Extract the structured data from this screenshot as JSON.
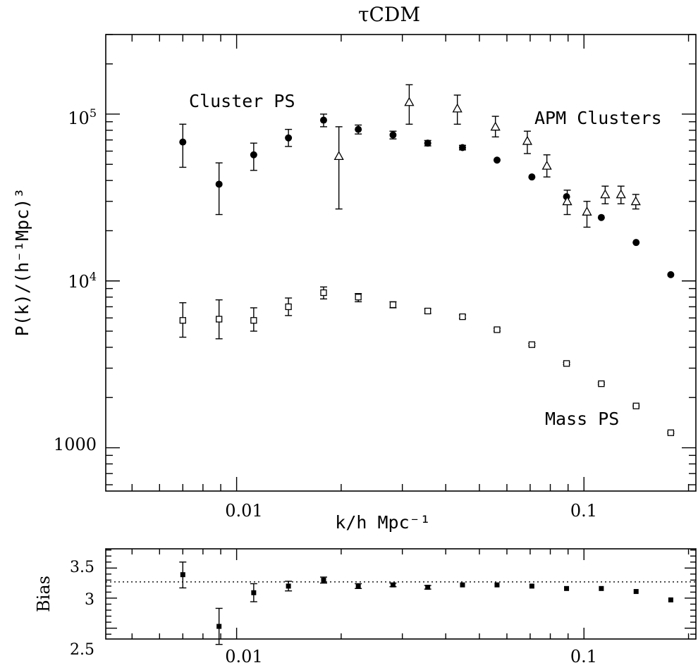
{
  "chart_data": [
    {
      "type": "scatter",
      "title": "τCDM",
      "xlabel": "k/h Mpc⁻¹",
      "ylabel": "P(k)/(h⁻¹Mpc)³",
      "xscale": "log",
      "yscale": "log",
      "xlim": [
        0.0042,
        0.21
      ],
      "ylim": [
        550,
        300000
      ],
      "xticklabels": [
        "0.01",
        "0.1"
      ],
      "yticklabels": [
        {
          "value": 1000,
          "base": "1000",
          "exp": ""
        },
        {
          "value": 10000,
          "base": "10",
          "exp": "4"
        },
        {
          "value": 100000,
          "base": "10",
          "exp": "5"
        }
      ],
      "annotations": [
        "Cluster PS",
        "APM Clusters",
        "Mass PS"
      ],
      "series": [
        {
          "marker": "filled-circle",
          "points": [
            {
              "x": 0.007,
              "y": 68000,
              "lo": 48000,
              "hi": 87000
            },
            {
              "x": 0.0089,
              "y": 38000,
              "lo": 25000,
              "hi": 51000
            },
            {
              "x": 0.0112,
              "y": 57000,
              "lo": 46000,
              "hi": 67000
            },
            {
              "x": 0.0141,
              "y": 72000,
              "lo": 64000,
              "hi": 81000
            },
            {
              "x": 0.0178,
              "y": 92000,
              "lo": 84000,
              "hi": 100000
            },
            {
              "x": 0.0224,
              "y": 81000,
              "lo": 76000,
              "hi": 86000
            },
            {
              "x": 0.0282,
              "y": 75000,
              "lo": 71000,
              "hi": 79000
            },
            {
              "x": 0.0355,
              "y": 67000,
              "lo": 64500,
              "hi": 69500
            },
            {
              "x": 0.0447,
              "y": 63000,
              "lo": 61000,
              "hi": 65000
            },
            {
              "x": 0.0562,
              "y": 53000
            },
            {
              "x": 0.0708,
              "y": 42000
            },
            {
              "x": 0.0891,
              "y": 32000
            },
            {
              "x": 0.1122,
              "y": 24000
            },
            {
              "x": 0.1413,
              "y": 17000
            },
            {
              "x": 0.1778,
              "y": 10900
            }
          ]
        },
        {
          "marker": "open-triangle",
          "points": [
            {
              "x": 0.0197,
              "y": 56000,
              "lo": 27000,
              "hi": 84000
            },
            {
              "x": 0.0314,
              "y": 118000,
              "lo": 87000,
              "hi": 150000
            },
            {
              "x": 0.0432,
              "y": 108000,
              "lo": 87000,
              "hi": 130000
            },
            {
              "x": 0.0556,
              "y": 84000,
              "lo": 73000,
              "hi": 97000
            },
            {
              "x": 0.0687,
              "y": 69000,
              "lo": 58000,
              "hi": 79000
            },
            {
              "x": 0.0782,
              "y": 49000,
              "lo": 42000,
              "hi": 57000
            },
            {
              "x": 0.0895,
              "y": 30000,
              "lo": 25000,
              "hi": 35000
            },
            {
              "x": 0.102,
              "y": 26000,
              "lo": 21000,
              "hi": 30000
            },
            {
              "x": 0.1151,
              "y": 33000,
              "lo": 29000,
              "hi": 37000
            },
            {
              "x": 0.1278,
              "y": 33000,
              "lo": 29000,
              "hi": 37000
            },
            {
              "x": 0.141,
              "y": 30000,
              "lo": 27000,
              "hi": 33000
            }
          ]
        },
        {
          "marker": "open-square",
          "points": [
            {
              "x": 0.007,
              "y": 5800,
              "lo": 4600,
              "hi": 7400
            },
            {
              "x": 0.0089,
              "y": 5900,
              "lo": 4500,
              "hi": 7700
            },
            {
              "x": 0.0112,
              "y": 5800,
              "lo": 5000,
              "hi": 6900
            },
            {
              "x": 0.0141,
              "y": 7000,
              "lo": 6200,
              "hi": 7900
            },
            {
              "x": 0.0178,
              "y": 8500,
              "lo": 7800,
              "hi": 9200
            },
            {
              "x": 0.0224,
              "y": 8000,
              "lo": 7500,
              "hi": 8400
            },
            {
              "x": 0.0282,
              "y": 7200,
              "lo": 6900,
              "hi": 7500
            },
            {
              "x": 0.0355,
              "y": 6600,
              "lo": 6400,
              "hi": 6800
            },
            {
              "x": 0.0447,
              "y": 6100,
              "lo": 5950,
              "hi": 6250
            },
            {
              "x": 0.0562,
              "y": 5100,
              "lo": 5000,
              "hi": 5200
            },
            {
              "x": 0.0708,
              "y": 4150,
              "lo": 4080,
              "hi": 4220
            },
            {
              "x": 0.0891,
              "y": 3200,
              "lo": 3150,
              "hi": 3250
            },
            {
              "x": 0.1122,
              "y": 2420,
              "lo": 2390,
              "hi": 2450
            },
            {
              "x": 0.1413,
              "y": 1780,
              "lo": 1760,
              "hi": 1800
            },
            {
              "x": 0.1778,
              "y": 1230,
              "lo": 1215,
              "hi": 1245
            }
          ]
        }
      ]
    },
    {
      "type": "scatter",
      "ylabel": "Bias",
      "xscale": "log",
      "xlim": [
        0.0042,
        0.21
      ],
      "ylim": [
        2.32,
        3.82
      ],
      "xticklabels": [
        "0.01",
        "0.1"
      ],
      "yticklabels": [
        "2.5",
        "3",
        "3.5"
      ],
      "reference_line": {
        "y": 3.27,
        "style": "dotted"
      },
      "points": [
        {
          "x": 0.007,
          "y": 3.39,
          "lo": 3.17,
          "hi": 3.6
        },
        {
          "x": 0.0089,
          "y": 2.53,
          "lo": 2.23,
          "hi": 2.83
        },
        {
          "x": 0.0112,
          "y": 3.09,
          "lo": 2.94,
          "hi": 3.24
        },
        {
          "x": 0.0141,
          "y": 3.2,
          "lo": 3.12,
          "hi": 3.28
        },
        {
          "x": 0.0178,
          "y": 3.3,
          "lo": 3.25,
          "hi": 3.35
        },
        {
          "x": 0.0224,
          "y": 3.2,
          "lo": 3.16,
          "hi": 3.24
        },
        {
          "x": 0.0282,
          "y": 3.22,
          "lo": 3.19,
          "hi": 3.25
        },
        {
          "x": 0.0355,
          "y": 3.18,
          "lo": 3.15,
          "hi": 3.21
        },
        {
          "x": 0.0447,
          "y": 3.22
        },
        {
          "x": 0.0562,
          "y": 3.22
        },
        {
          "x": 0.0708,
          "y": 3.2
        },
        {
          "x": 0.0891,
          "y": 3.16
        },
        {
          "x": 0.1122,
          "y": 3.16
        },
        {
          "x": 0.1413,
          "y": 3.11
        },
        {
          "x": 0.1778,
          "y": 2.97
        }
      ]
    }
  ]
}
